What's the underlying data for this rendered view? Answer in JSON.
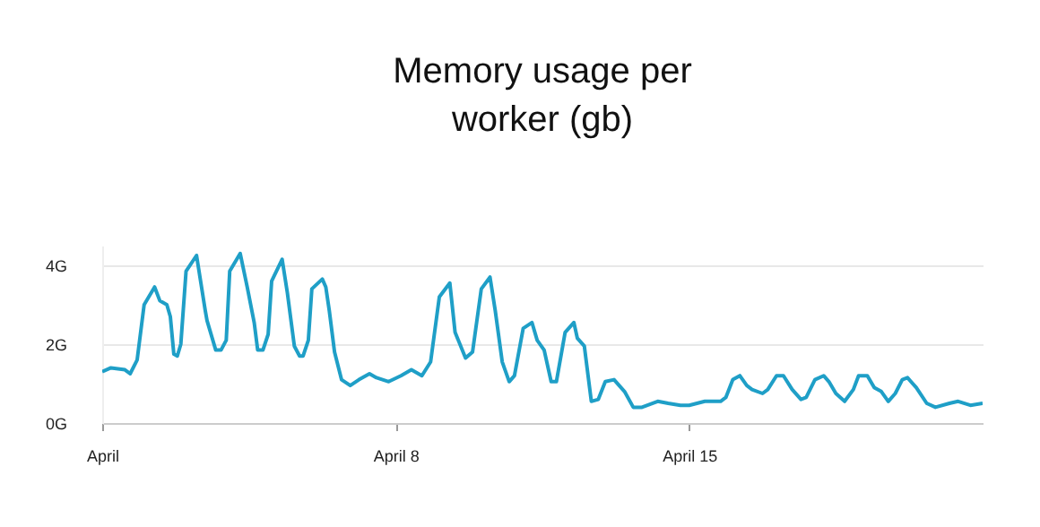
{
  "chart_data": {
    "type": "line",
    "title": "Memory usage per worker (gb)",
    "x": [
      "--04-01T00:00",
      "--04-01T05:00",
      "--04-01T13:00",
      "--04-01T16:00",
      "--04-01T20:00",
      "--04-02T00:00",
      "--04-02T06:00",
      "--04-02T09:00",
      "--04-02T13:00",
      "--04-02T15:00",
      "--04-02T17:00",
      "--04-02T19:00",
      "--04-02T21:00",
      "--04-03T00:00",
      "--04-03T06:00",
      "--04-03T11:00",
      "--04-03T12:00",
      "--04-03T17:00",
      "--04-03T20:00",
      "--04-03T23:00",
      "--04-04T01:00",
      "--04-04T07:00",
      "--04-04T11:00",
      "--04-04T15:00",
      "--04-04T17:00",
      "--04-04T20:00",
      "--04-04T23:00",
      "--04-05T01:00",
      "--04-05T07:00",
      "--04-05T10:00",
      "--04-05T14:00",
      "--04-05T17:00",
      "--04-05T19:00",
      "--04-05T22:00",
      "--04-06T00:00",
      "--04-06T06:00",
      "--04-06T08:00",
      "--04-06T10:00",
      "--04-06T13:00",
      "--04-06T17:00",
      "--04-06T22:00",
      "--04-07T03:00",
      "--04-07T09:00",
      "--04-07T13:00",
      "--04-07T20:00",
      "--04-08T03:00",
      "--04-08T09:00",
      "--04-08T15:00",
      "--04-08T20:00",
      "--04-09T01:00",
      "--04-09T07:00",
      "--04-09T10:00",
      "--04-09T16:00",
      "--04-09T20:00",
      "--04-10T01:00",
      "--04-10T06:00",
      "--04-10T09:00",
      "--04-10T13:00",
      "--04-10T17:00",
      "--04-10T20:00",
      "--04-11T01:00",
      "--04-11T06:00",
      "--04-11T09:00",
      "--04-11T13:00",
      "--04-11T17:00",
      "--04-11T20:00",
      "--04-12T01:00",
      "--04-12T06:00",
      "--04-12T08:00",
      "--04-12T12:00",
      "--04-12T16:00",
      "--04-12T20:00",
      "--04-13T00:00",
      "--04-13T05:00",
      "--04-13T11:00",
      "--04-13T16:00",
      "--04-13T21:00",
      "--04-14T06:00",
      "--04-14T12:00",
      "--04-14T19:00",
      "--04-15T00:00",
      "--04-15T09:00",
      "--04-15T18:00",
      "--04-15T21:00",
      "--04-16T01:00",
      "--04-16T05:00",
      "--04-16T09:00",
      "--04-16T12:00",
      "--04-16T18:00",
      "--04-16T21:00",
      "--04-17T02:00",
      "--04-17T06:00",
      "--04-17T11:00",
      "--04-17T16:00",
      "--04-17T19:00",
      "--04-18T00:00",
      "--04-18T05:00",
      "--04-18T08:00",
      "--04-18T12:00",
      "--04-18T17:00",
      "--04-18T22:00",
      "--04-19T01:00",
      "--04-19T06:00",
      "--04-19T10:00",
      "--04-19T14:00",
      "--04-19T18:00",
      "--04-19T22:00",
      "--04-20T02:00",
      "--04-20T05:00",
      "--04-20T10:00",
      "--04-20T16:00",
      "--04-20T21:00",
      "--04-21T05:00",
      "--04-21T10:00",
      "--04-21T17:00",
      "--04-22T00:00"
    ],
    "series": [
      {
        "color": "#1f9fc7",
        "values": [
          1.3,
          1.4,
          1.35,
          1.25,
          1.6,
          3.0,
          3.45,
          3.1,
          3.0,
          2.7,
          1.75,
          1.7,
          2.0,
          3.85,
          4.25,
          2.85,
          2.6,
          1.85,
          1.85,
          2.1,
          3.85,
          4.3,
          3.45,
          2.55,
          1.85,
          1.85,
          2.25,
          3.6,
          4.15,
          3.3,
          1.95,
          1.7,
          1.7,
          2.1,
          3.4,
          3.65,
          3.45,
          2.85,
          1.8,
          1.1,
          0.95,
          1.1,
          1.25,
          1.15,
          1.05,
          1.2,
          1.35,
          1.2,
          1.55,
          3.2,
          3.55,
          2.3,
          1.65,
          1.8,
          3.4,
          3.7,
          2.85,
          1.55,
          1.05,
          1.2,
          2.4,
          2.55,
          2.1,
          1.85,
          1.05,
          1.05,
          2.3,
          2.55,
          2.15,
          1.95,
          0.55,
          0.6,
          1.05,
          1.1,
          0.8,
          0.4,
          0.4,
          0.55,
          0.5,
          0.45,
          0.45,
          0.55,
          0.55,
          0.65,
          1.1,
          1.2,
          0.95,
          0.85,
          0.75,
          0.85,
          1.2,
          1.2,
          0.85,
          0.6,
          0.65,
          1.1,
          1.2,
          1.05,
          0.75,
          0.55,
          0.85,
          1.2,
          1.2,
          0.9,
          0.8,
          0.55,
          0.75,
          1.1,
          1.15,
          0.9,
          0.5,
          0.4,
          0.5,
          0.55,
          0.45,
          0.5
        ]
      }
    ],
    "xlim": [
      "--04-01",
      "--04-22"
    ],
    "xticks": [
      {
        "value": "--04-01",
        "label": "April"
      },
      {
        "value": "--04-08",
        "label": "April 8"
      },
      {
        "value": "--04-15",
        "label": "April 15"
      }
    ],
    "ylim": [
      0,
      4.5
    ],
    "yticks": [
      {
        "value": 0,
        "label": "0G"
      },
      {
        "value": 2,
        "label": "2G"
      },
      {
        "value": 4,
        "label": "4G"
      }
    ],
    "grid": "y",
    "legend": false
  }
}
